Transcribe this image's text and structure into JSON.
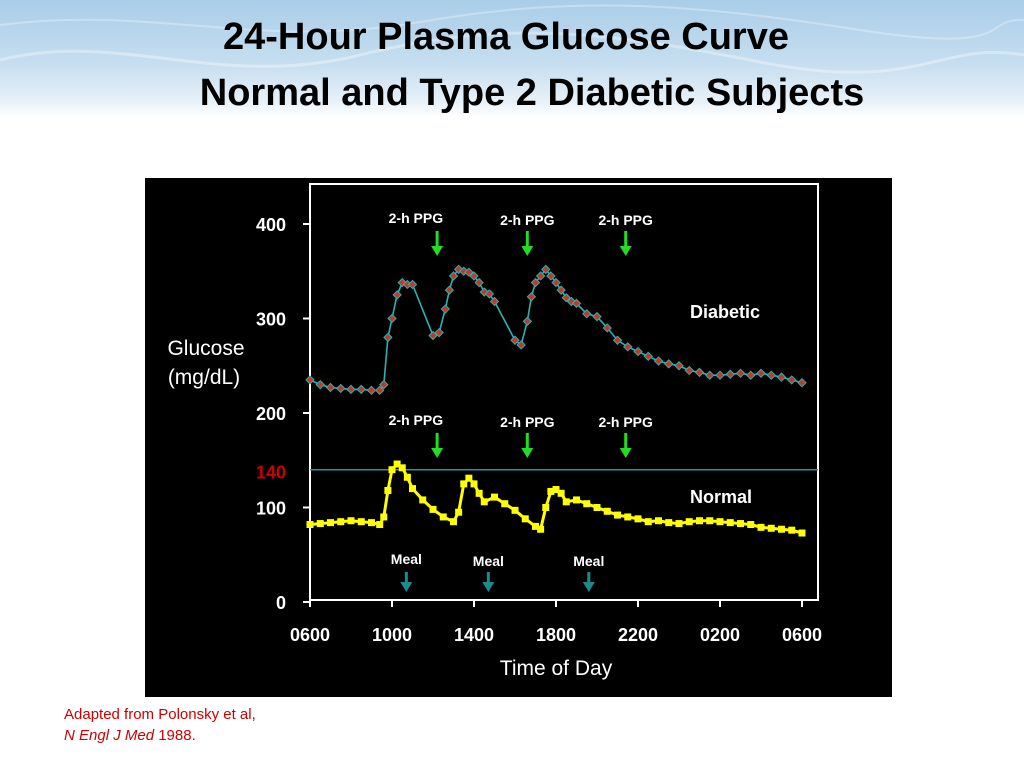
{
  "slide": {
    "title_line1": "24-Hour Plasma Glucose Curve",
    "title_line2": "Normal and Type 2 Diabetic Subjects",
    "source_line1": "Adapted from Polonsky et al,",
    "source_journal": "N Engl J Med",
    "source_year": " 1988."
  },
  "colors": {
    "banner": "#b7d6ee",
    "panel_bg": "#000000",
    "diabetic_line": "#2bb3b3",
    "diabetic_marker": "#c0392b",
    "normal_series": "#ffff00",
    "threshold_line": "#2f8fa0",
    "threshold_label": "#cc0000",
    "ppg_arrow": "#22dd22",
    "meal_arrow": "#1a8c8c",
    "text_on_black": "#ffffff"
  },
  "chart_data": {
    "type": "line",
    "xlabel": "Time of Day",
    "ylabel_line1": "Glucose",
    "ylabel_line2": "(mg/dL)",
    "x_ticks": [
      "0600",
      "1000",
      "1400",
      "1800",
      "2200",
      "0200",
      "0600"
    ],
    "x_range_hours": [
      0,
      24
    ],
    "y_ticks": [
      0,
      100,
      200,
      300,
      400
    ],
    "ylim": [
      0,
      420
    ],
    "threshold": {
      "value": 140,
      "label": "140"
    },
    "grid": false,
    "series": [
      {
        "name": "Diabetic",
        "label_position": "right",
        "x": [
          0,
          0.5,
          1,
          1.5,
          2,
          2.5,
          3,
          3.4,
          3.6,
          3.8,
          4,
          4.25,
          4.5,
          4.75,
          5,
          6,
          6.3,
          6.6,
          6.8,
          7,
          7.25,
          7.5,
          7.75,
          8,
          8.25,
          8.5,
          8.75,
          9,
          10,
          10.3,
          10.6,
          10.8,
          11,
          11.25,
          11.5,
          11.75,
          12,
          12.25,
          12.5,
          12.75,
          13,
          13.5,
          14,
          14.5,
          15,
          15.5,
          16,
          16.5,
          17,
          17.5,
          18,
          18.5,
          19,
          19.5,
          20,
          20.5,
          21,
          21.5,
          22,
          22.5,
          23,
          23.5,
          24
        ],
        "y": [
          235,
          230,
          227,
          226,
          225,
          225,
          224,
          224,
          230,
          280,
          300,
          325,
          338,
          336,
          336,
          282,
          285,
          310,
          330,
          345,
          352,
          350,
          349,
          345,
          338,
          328,
          326,
          318,
          277,
          272,
          297,
          323,
          338,
          345,
          352,
          345,
          338,
          330,
          322,
          318,
          316,
          305,
          302,
          290,
          277,
          270,
          265,
          260,
          255,
          252,
          250,
          245,
          243,
          240,
          240,
          241,
          242,
          240,
          242,
          240,
          238,
          235,
          232
        ]
      },
      {
        "name": "Normal",
        "label_position": "right",
        "x": [
          0,
          0.5,
          1,
          1.5,
          2,
          2.5,
          3,
          3.4,
          3.6,
          3.8,
          4,
          4.25,
          4.5,
          4.75,
          5,
          5.5,
          6,
          6.5,
          7,
          7.25,
          7.5,
          7.75,
          8,
          8.25,
          8.5,
          9,
          9.5,
          10,
          10.5,
          11,
          11.25,
          11.5,
          11.75,
          12,
          12.25,
          12.5,
          13,
          13.5,
          14,
          14.5,
          15,
          15.5,
          16,
          16.5,
          17,
          17.5,
          18,
          18.5,
          19,
          19.5,
          20,
          20.5,
          21,
          21.5,
          22,
          22.5,
          23,
          23.5,
          24
        ],
        "y": [
          82,
          83,
          84,
          85,
          86,
          85,
          84,
          82,
          90,
          118,
          140,
          146,
          142,
          132,
          120,
          108,
          98,
          90,
          85,
          95,
          125,
          131,
          125,
          115,
          106,
          111,
          104,
          97,
          88,
          80,
          77,
          100,
          117,
          119,
          115,
          106,
          108,
          104,
          100,
          96,
          92,
          90,
          88,
          85,
          86,
          84,
          83,
          85,
          86,
          86,
          85,
          84,
          83,
          82,
          79,
          78,
          77,
          76,
          73
        ]
      }
    ],
    "annotations": {
      "ppg_label": "2-h PPG",
      "meal_label": "Meal",
      "diabetic_ppg_hours": [
        6.2,
        10.6,
        15.4
      ],
      "normal_ppg_hours": [
        6.2,
        10.6,
        15.4
      ],
      "meal_hours": [
        4.7,
        8.7,
        13.6
      ]
    }
  }
}
